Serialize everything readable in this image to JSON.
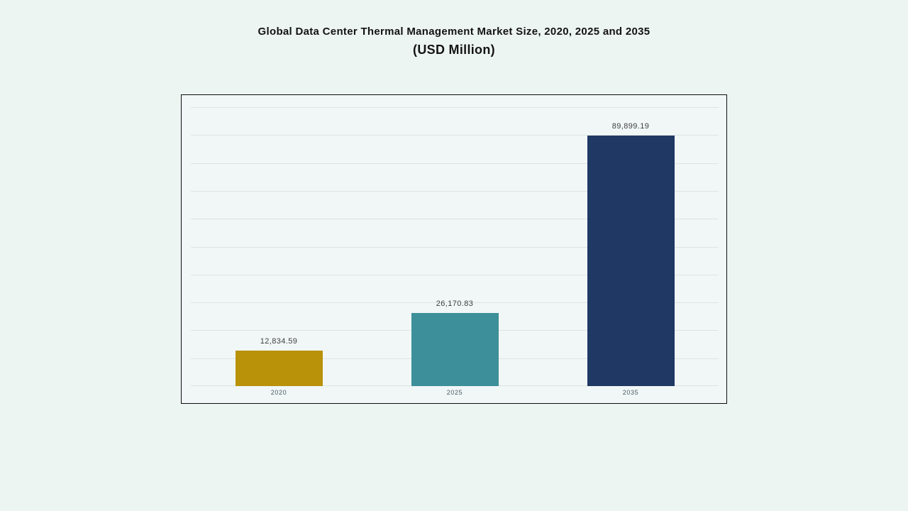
{
  "page": {
    "title_line1": "Global Data Center Thermal Management Market Size, 2020, 2025 and 2035",
    "title_line2": "(USD Million)"
  },
  "colors": {
    "background": "#EDF5F2",
    "plot_background": "#F1F7F7",
    "border": "#0D0D0D",
    "gridline": "#DDE4E4",
    "value_label": "#3F3F3F",
    "axis_label": "#4C5A60",
    "title": "#141414"
  },
  "chart_data": {
    "type": "bar",
    "title": "Global Data Center Thermal Management Market Size, 2020, 2025 and 2035",
    "subtitle": "(USD Million)",
    "categories": [
      "2020",
      "2025",
      "2035"
    ],
    "values": [
      12834.59,
      26170.83,
      89899.19
    ],
    "value_labels": [
      "12,834.59",
      "26,170.83",
      "89,899.19"
    ],
    "bar_colors": [
      "#B9920A",
      "#3D8F99",
      "#1F3864"
    ],
    "xlabel": "",
    "ylabel": "",
    "ylim": [
      0,
      100000
    ],
    "grid_step": 10000,
    "grid": true,
    "legend": false,
    "y_tick_labels_visible": false
  }
}
